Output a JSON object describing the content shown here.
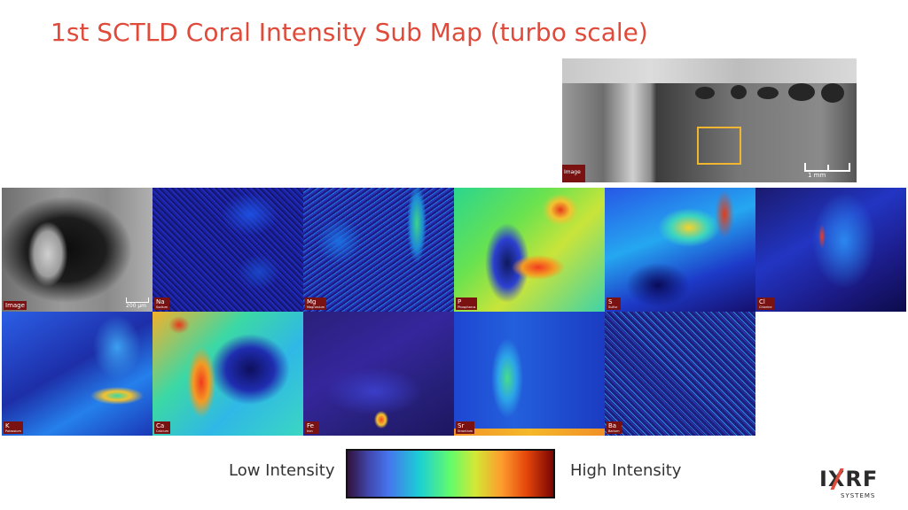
{
  "title": "1st SCTLD Coral Intensity Sub Map (turbo scale)",
  "overview": {
    "tag": "Image",
    "scale_label": "1 mm",
    "inset_color": "#f2b530"
  },
  "maps": [
    {
      "symbol": "Image",
      "name": "",
      "scale_label": "200 µm"
    },
    {
      "symbol": "Na",
      "name": "Sodium"
    },
    {
      "symbol": "Mg",
      "name": "Magnesium"
    },
    {
      "symbol": "P",
      "name": "Phosphorus"
    },
    {
      "symbol": "S",
      "name": "Sulfur"
    },
    {
      "symbol": "Cl",
      "name": "Chlorine"
    },
    {
      "symbol": "K",
      "name": "Potassium"
    },
    {
      "symbol": "Ca",
      "name": "Calcium"
    },
    {
      "symbol": "Fe",
      "name": "Iron"
    },
    {
      "symbol": "Sr",
      "name": "Strontium"
    },
    {
      "symbol": "Ba",
      "name": "Barium"
    }
  ],
  "legend": {
    "low_label": "Low Intensity",
    "high_label": "High Intensity",
    "scale_name": "turbo"
  },
  "logo": {
    "brand": "IXRF",
    "sub": "SYSTEMS"
  },
  "colors": {
    "title": "#e04a3a",
    "tag_bg": "#7a1212",
    "logo_accent": "#e04a3a"
  }
}
